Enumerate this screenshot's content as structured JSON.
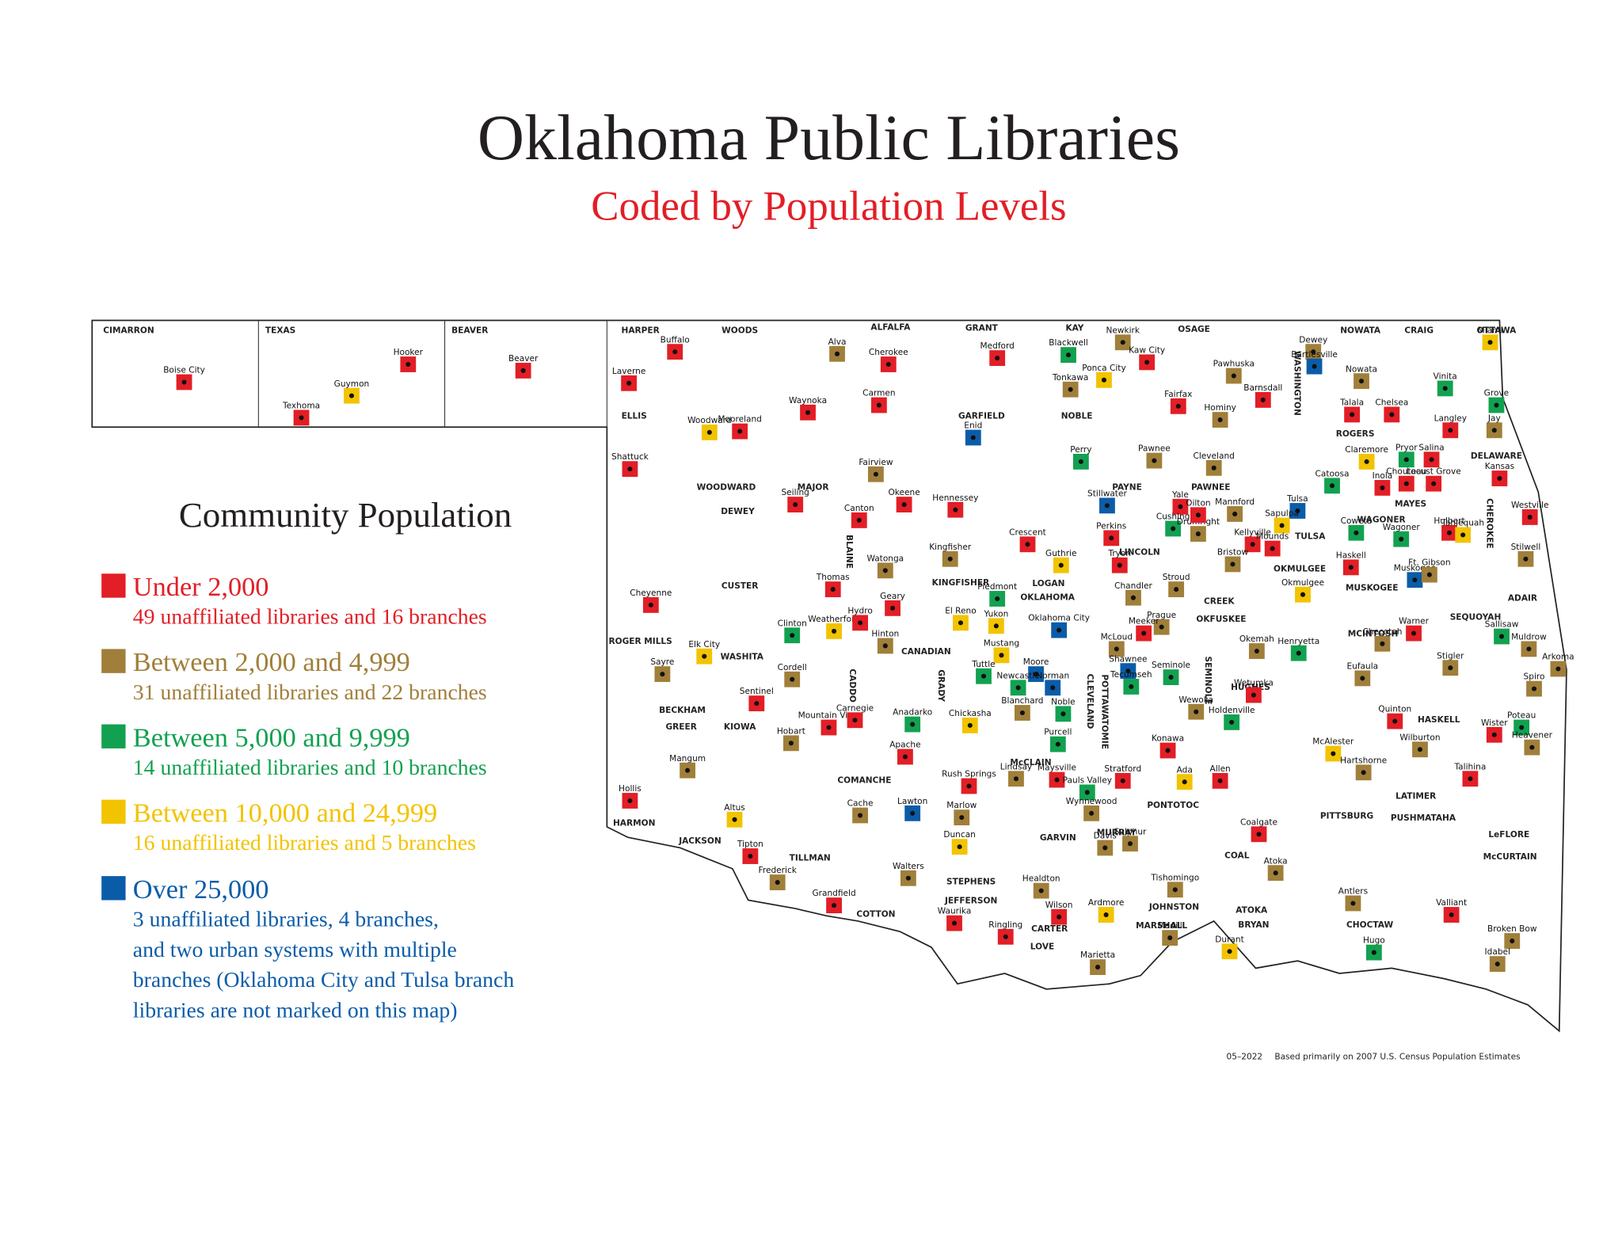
{
  "title": "Oklahoma Public Libraries",
  "subtitle": "Coded by Population Levels",
  "legend": {
    "title": "Community Population",
    "items": [
      {
        "label": "Under 2,000",
        "note": [
          "49 unaffiliated libraries and 16 branches"
        ],
        "color": "#e21e26"
      },
      {
        "label": "Between 2,000 and 4,999",
        "note": [
          "31 unaffiliated libraries and 22 branches"
        ],
        "color": "#a07f3a"
      },
      {
        "label": "Between 5,000 and 9,999",
        "note": [
          "14 unaffiliated libraries and 10 branches"
        ],
        "color": "#12a150"
      },
      {
        "label": "Between 10,000 and 24,999",
        "note": [
          "16 unaffiliated libraries and 5 branches"
        ],
        "color": "#f2c300"
      },
      {
        "label": "Over 25,000",
        "note": [
          "3 unaffiliated libraries, 4 branches,",
          "and two urban systems with multiple",
          "branches (Oklahoma City and Tulsa branch",
          "libraries are not marked on this map)"
        ],
        "color": "#0b5ca8"
      }
    ]
  },
  "counties": [
    "CIMARRON",
    "TEXAS",
    "BEAVER",
    "HARPER",
    "WOODS",
    "ALFALFA",
    "GRANT",
    "KAY",
    "OSAGE",
    "WASHINGTON",
    "NOWATA",
    "CRAIG",
    "OTTAWA",
    "ELLIS",
    "WOODWARD",
    "MAJOR",
    "GARFIELD",
    "NOBLE",
    "ROGERS",
    "DELAWARE",
    "PAYNE",
    "PAWNEE",
    "MAYES",
    "DEWEY",
    "BLAINE",
    "KINGFISHER",
    "LOGAN",
    "LINCOLN",
    "TULSA",
    "WAGONER",
    "CHEROKEE",
    "CREEK",
    "OKMULGEE",
    "MUSKOGEE",
    "ADAIR",
    "CUSTER",
    "OKLAHOMA",
    "OKFUSKEE",
    "SEQUOYAH",
    "ROGER MILLS",
    "WASHITA",
    "CANADIAN",
    "MCINTOSH",
    "CADDO",
    "GRADY",
    "CLEVELAND",
    "POTTAWATOMIE",
    "SEMINOLE",
    "HUGHES",
    "BECKHAM",
    "GREER",
    "KIOWA",
    "HASKELL",
    "McCLAIN",
    "COMANCHE",
    "PONTOTOC",
    "LATIMER",
    "PITTSBURG",
    "PUSHMATAHA",
    "HARMON",
    "JACKSON",
    "LeFLORE",
    "GARVIN",
    "MURRAY",
    "TILLMAN",
    "COAL",
    "McCURTAIN",
    "STEPHENS",
    "JEFFERSON",
    "JOHNSTON",
    "COTTON",
    "ATOKA",
    "CARTER",
    "MARSHALL",
    "BRYAN",
    "CHOCTAW",
    "LOVE"
  ],
  "libraries": [
    {
      "name": "Boise City",
      "level": 0
    },
    {
      "name": "Hooker",
      "level": 0
    },
    {
      "name": "Guymon",
      "level": 3
    },
    {
      "name": "Texhoma",
      "level": 0
    },
    {
      "name": "Beaver",
      "level": 0
    },
    {
      "name": "Buffalo",
      "level": 0
    },
    {
      "name": "Laverne",
      "level": 0
    },
    {
      "name": "Alva",
      "level": 1
    },
    {
      "name": "Cherokee",
      "level": 0
    },
    {
      "name": "Carmen",
      "level": 0
    },
    {
      "name": "Medford",
      "level": 0
    },
    {
      "name": "Blackwell",
      "level": 2
    },
    {
      "name": "Newkirk",
      "level": 1
    },
    {
      "name": "Kaw City",
      "level": 0
    },
    {
      "name": "Ponca City",
      "level": 3
    },
    {
      "name": "Tonkawa",
      "level": 1
    },
    {
      "name": "Pawhuska",
      "level": 1
    },
    {
      "name": "Barnsdall",
      "level": 0
    },
    {
      "name": "Fairfax",
      "level": 0
    },
    {
      "name": "Hominy",
      "level": 1
    },
    {
      "name": "Dewey",
      "level": 1
    },
    {
      "name": "Bartlesville",
      "level": 4
    },
    {
      "name": "Nowata",
      "level": 1
    },
    {
      "name": "Vinita",
      "level": 2
    },
    {
      "name": "Miami",
      "level": 3
    },
    {
      "name": "Grove",
      "level": 2
    },
    {
      "name": "Jay",
      "level": 1
    },
    {
      "name": "Talala",
      "level": 0
    },
    {
      "name": "Chelsea",
      "level": 0
    },
    {
      "name": "Langley",
      "level": 0
    },
    {
      "name": "Claremore",
      "level": 3
    },
    {
      "name": "Pryor",
      "level": 2
    },
    {
      "name": "Salina",
      "level": 0
    },
    {
      "name": "Chouteau",
      "level": 0
    },
    {
      "name": "Locust Grove",
      "level": 0
    },
    {
      "name": "Inola",
      "level": 0
    },
    {
      "name": "Catoosa",
      "level": 2
    },
    {
      "name": "Kansas",
      "level": 0
    },
    {
      "name": "Woodward",
      "level": 3
    },
    {
      "name": "Mooreland",
      "level": 0
    },
    {
      "name": "Waynoka",
      "level": 0
    },
    {
      "name": "Shattuck",
      "level": 0
    },
    {
      "name": "Enid",
      "level": 4
    },
    {
      "name": "Fairview",
      "level": 1
    },
    {
      "name": "Perry",
      "level": 2
    },
    {
      "name": "Pawnee",
      "level": 1
    },
    {
      "name": "Cleveland",
      "level": 1
    },
    {
      "name": "Stillwater",
      "level": 4
    },
    {
      "name": "Yale",
      "level": 0
    },
    {
      "name": "Mannford",
      "level": 1
    },
    {
      "name": "Tulsa",
      "level": 4
    },
    {
      "name": "Okeene",
      "level": 0
    },
    {
      "name": "Seiling",
      "level": 0
    },
    {
      "name": "Hennessey",
      "level": 0
    },
    {
      "name": "Canton",
      "level": 0
    },
    {
      "name": "Perkins",
      "level": 0
    },
    {
      "name": "Cushing",
      "level": 2
    },
    {
      "name": "Drumright",
      "level": 1
    },
    {
      "name": "Oilton",
      "level": 0
    },
    {
      "name": "Sapulpa",
      "level": 3
    },
    {
      "name": "Kellyville",
      "level": 0
    },
    {
      "name": "Mounds",
      "level": 0
    },
    {
      "name": "Coweta",
      "level": 2
    },
    {
      "name": "Wagoner",
      "level": 2
    },
    {
      "name": "Hulbert",
      "level": 0
    },
    {
      "name": "Tahlequah",
      "level": 3
    },
    {
      "name": "Westville",
      "level": 0
    },
    {
      "name": "Stilwell",
      "level": 1
    },
    {
      "name": "Kingfisher",
      "level": 1
    },
    {
      "name": "Watonga",
      "level": 1
    },
    {
      "name": "Crescent",
      "level": 0
    },
    {
      "name": "Guthrie",
      "level": 3
    },
    {
      "name": "Tryon",
      "level": 0
    },
    {
      "name": "Bristow",
      "level": 1
    },
    {
      "name": "Haskell",
      "level": 0
    },
    {
      "name": "Okmulgee",
      "level": 3
    },
    {
      "name": "Muskogee",
      "level": 4
    },
    {
      "name": "Ft. Gibson",
      "level": 1
    },
    {
      "name": "Cheyenne",
      "level": 0
    },
    {
      "name": "Thomas",
      "level": 0
    },
    {
      "name": "Geary",
      "level": 0
    },
    {
      "name": "Piedmont",
      "level": 2
    },
    {
      "name": "Yukon",
      "level": 3
    },
    {
      "name": "Stroud",
      "level": 1
    },
    {
      "name": "Chandler",
      "level": 1
    },
    {
      "name": "Prague",
      "level": 1
    },
    {
      "name": "Weatherford",
      "level": 3
    },
    {
      "name": "Clinton",
      "level": 2
    },
    {
      "name": "Hydro",
      "level": 0
    },
    {
      "name": "El Reno",
      "level": 3
    },
    {
      "name": "Oklahoma City",
      "level": 4
    },
    {
      "name": "Meeker",
      "level": 0
    },
    {
      "name": "Hinton",
      "level": 1
    },
    {
      "name": "Mustang",
      "level": 3
    },
    {
      "name": "McLoud",
      "level": 1
    },
    {
      "name": "Warner",
      "level": 0
    },
    {
      "name": "Sallisaw",
      "level": 2
    },
    {
      "name": "Muldrow",
      "level": 1
    },
    {
      "name": "Arkoma",
      "level": 1
    },
    {
      "name": "Elk City",
      "level": 3
    },
    {
      "name": "Sayre",
      "level": 1
    },
    {
      "name": "Henryetta",
      "level": 2
    },
    {
      "name": "Okemah",
      "level": 1
    },
    {
      "name": "Checotah",
      "level": 1
    },
    {
      "name": "Cordell",
      "level": 1
    },
    {
      "name": "Tuttle",
      "level": 2
    },
    {
      "name": "Moore",
      "level": 4
    },
    {
      "name": "Newcastle",
      "level": 2
    },
    {
      "name": "Norman",
      "level": 4
    },
    {
      "name": "Shawnee",
      "level": 4
    },
    {
      "name": "Tecumseh",
      "level": 2
    },
    {
      "name": "Seminole",
      "level": 2
    },
    {
      "name": "Eufaula",
      "level": 1
    },
    {
      "name": "Stigler",
      "level": 1
    },
    {
      "name": "Spiro",
      "level": 1
    },
    {
      "name": "Sentinel",
      "level": 0
    },
    {
      "name": "Wetumka",
      "level": 0
    },
    {
      "name": "Blanchard",
      "level": 1
    },
    {
      "name": "Noble",
      "level": 2
    },
    {
      "name": "Wewoka",
      "level": 1
    },
    {
      "name": "Holdenville",
      "level": 2
    },
    {
      "name": "Mountain View",
      "level": 0
    },
    {
      "name": "Carnegie",
      "level": 0
    },
    {
      "name": "Anadarko",
      "level": 2
    },
    {
      "name": "Chickasha",
      "level": 3
    },
    {
      "name": "Quinton",
      "level": 0
    },
    {
      "name": "Poteau",
      "level": 2
    },
    {
      "name": "Wister",
      "level": 0
    },
    {
      "name": "Purcell",
      "level": 2
    },
    {
      "name": "Konawa",
      "level": 0
    },
    {
      "name": "Hobart",
      "level": 1
    },
    {
      "name": "Apache",
      "level": 0
    },
    {
      "name": "McAlester",
      "level": 3
    },
    {
      "name": "Wilburton",
      "level": 1
    },
    {
      "name": "Heavener",
      "level": 1
    },
    {
      "name": "Mangum",
      "level": 1
    },
    {
      "name": "Hartshorne",
      "level": 1
    },
    {
      "name": "Allen",
      "level": 0
    },
    {
      "name": "Lindsay",
      "level": 1
    },
    {
      "name": "Maysville",
      "level": 0
    },
    {
      "name": "Rush Springs",
      "level": 0
    },
    {
      "name": "Pauls Valley",
      "level": 2
    },
    {
      "name": "Stratford",
      "level": 0
    },
    {
      "name": "Ada",
      "level": 3
    },
    {
      "name": "Talihina",
      "level": 0
    },
    {
      "name": "Hollis",
      "level": 0
    },
    {
      "name": "Altus",
      "level": 3
    },
    {
      "name": "Cache",
      "level": 1
    },
    {
      "name": "Lawton",
      "level": 4
    },
    {
      "name": "Marlow",
      "level": 1
    },
    {
      "name": "Wynnewood",
      "level": 1
    },
    {
      "name": "Coalgate",
      "level": 0
    },
    {
      "name": "Duncan",
      "level": 3
    },
    {
      "name": "Davis",
      "level": 1
    },
    {
      "name": "Sulphur",
      "level": 1
    },
    {
      "name": "Tipton",
      "level": 0
    },
    {
      "name": "Atoka",
      "level": 1
    },
    {
      "name": "Walters",
      "level": 1
    },
    {
      "name": "Frederick",
      "level": 1
    },
    {
      "name": "Tishomingo",
      "level": 1
    },
    {
      "name": "Healdton",
      "level": 1
    },
    {
      "name": "Grandfield",
      "level": 0
    },
    {
      "name": "Antlers",
      "level": 1
    },
    {
      "name": "Wilson",
      "level": 0
    },
    {
      "name": "Ardmore",
      "level": 3
    },
    {
      "name": "Valliant",
      "level": 0
    },
    {
      "name": "Waurika",
      "level": 0
    },
    {
      "name": "Ringling",
      "level": 0
    },
    {
      "name": "Broken Bow",
      "level": 1
    },
    {
      "name": "Madill",
      "level": 1
    },
    {
      "name": "Durant",
      "level": 3
    },
    {
      "name": "Hugo",
      "level": 2
    },
    {
      "name": "Idabel",
      "level": 1
    },
    {
      "name": "Marietta",
      "level": 1
    }
  ],
  "footnote": {
    "date": "05–2022",
    "source": "Based primarily on 2007 U.S. Census Population Estimates"
  }
}
